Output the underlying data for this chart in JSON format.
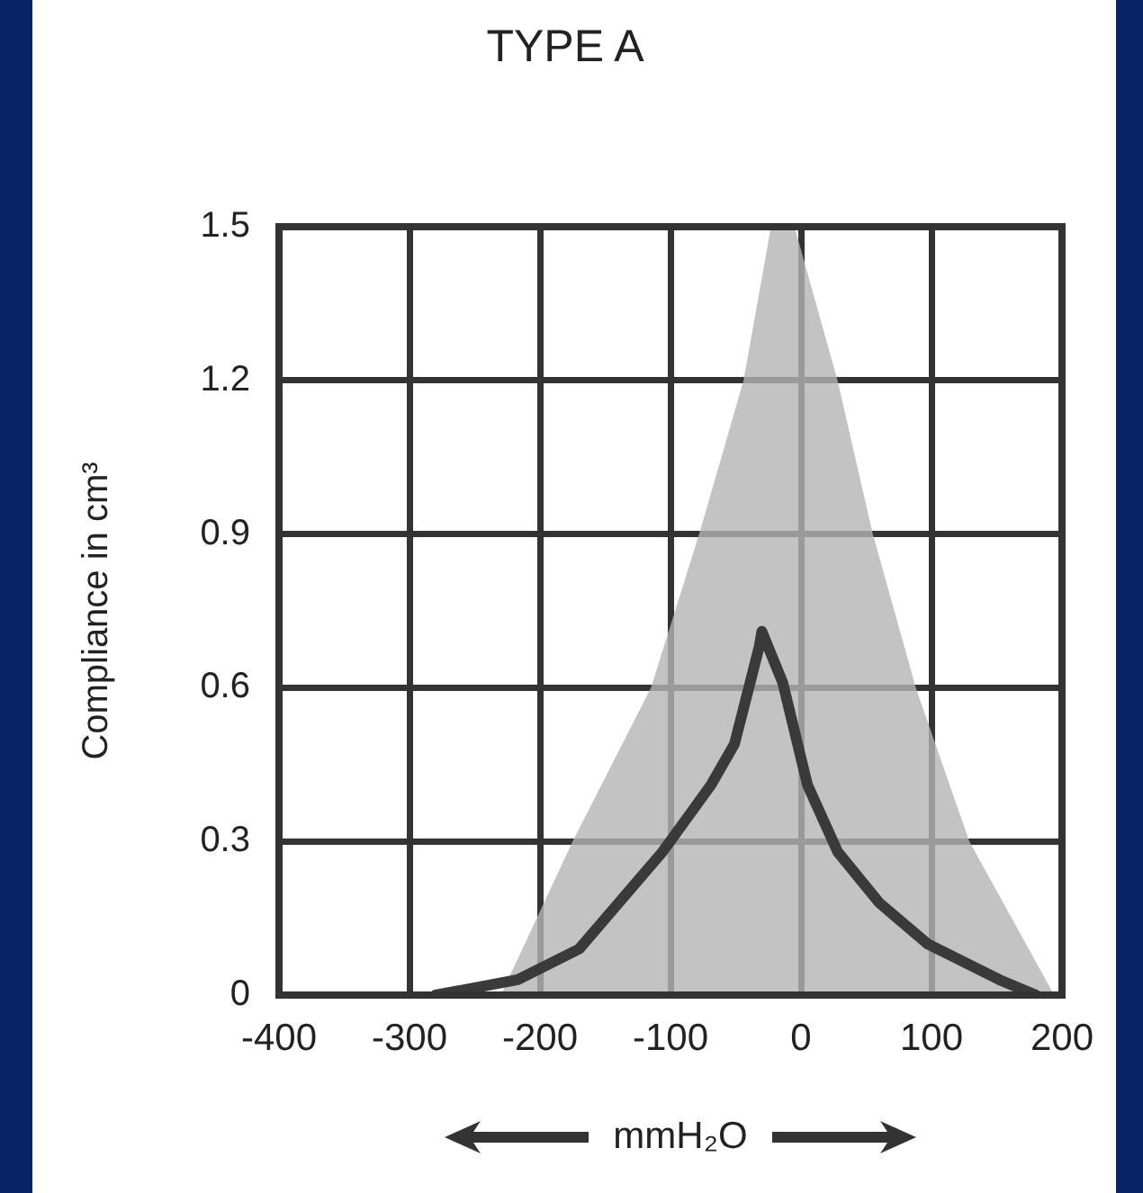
{
  "chart_data": {
    "type": "line",
    "title": "TYPE A",
    "xlabel": "mmH₂O",
    "ylabel": "Compliance in cm³",
    "xlim": [
      -400,
      200
    ],
    "xticks": [
      -400,
      -300,
      -200,
      -100,
      0,
      100,
      200
    ],
    "ylim": [
      0,
      1.5
    ],
    "yticks": [
      0,
      0.3,
      0.6,
      0.9,
      1.2,
      1.5
    ],
    "grid": true,
    "legend": false,
    "marker": "none",
    "line_style": "solid",
    "series": [
      {
        "type": "area",
        "color": "#b4b4b4",
        "x": [
          -230,
          -175,
          -115,
          -78,
          -44,
          -23,
          -5,
          28,
          55,
          88,
          129,
          194
        ],
        "values": [
          0,
          0.3,
          0.6,
          0.9,
          1.2,
          1.5,
          1.5,
          1.2,
          0.9,
          0.6,
          0.3,
          0
        ]
      },
      {
        "color": "#3a3a3a",
        "x": [
          -280,
          -217,
          -170,
          -106,
          -69,
          -51,
          -32,
          -30,
          -14,
          5,
          28,
          60,
          97,
          152,
          180
        ],
        "values": [
          0,
          0.03,
          0.09,
          0.28,
          0.41,
          0.49,
          0.68,
          0.71,
          0.61,
          0.41,
          0.28,
          0.18,
          0.1,
          0.03,
          0
        ]
      }
    ]
  }
}
